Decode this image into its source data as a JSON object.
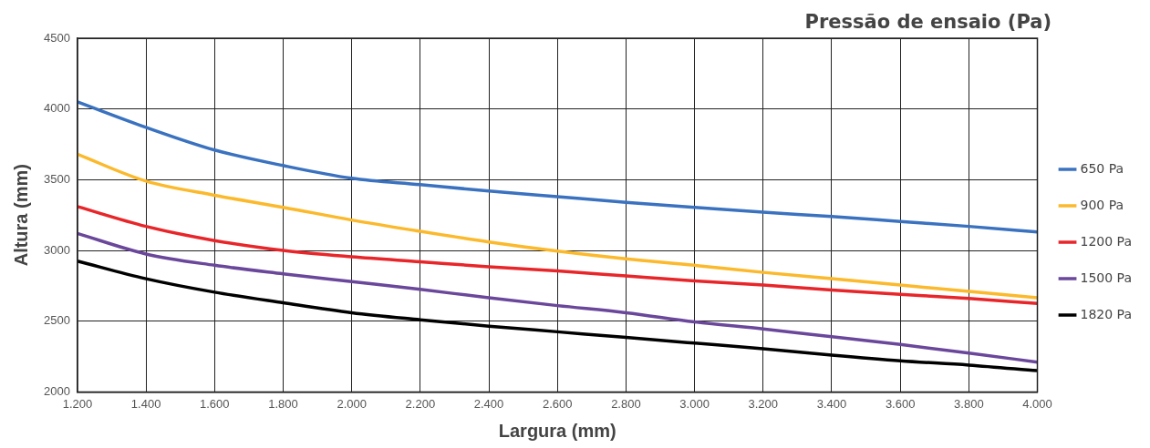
{
  "chart_data": {
    "type": "line",
    "legend_title": "Pressão de ensaio (Pa)",
    "xlabel": "Largura (mm)",
    "ylabel": "Altura (mm)",
    "xlim": [
      1200,
      4000
    ],
    "xticks": [
      {
        "value": 1200,
        "label": "1.200"
      },
      {
        "value": 1400,
        "label": "1.400"
      },
      {
        "value": 1600,
        "label": "1.600"
      },
      {
        "value": 1800,
        "label": "1.800"
      },
      {
        "value": 2000,
        "label": "2.000"
      },
      {
        "value": 2200,
        "label": "2.200"
      },
      {
        "value": 2400,
        "label": "2.400"
      },
      {
        "value": 2600,
        "label": "2.600"
      },
      {
        "value": 2800,
        "label": "2.800"
      },
      {
        "value": 3000,
        "label": "3.000"
      },
      {
        "value": 3200,
        "label": "3.200"
      },
      {
        "value": 3400,
        "label": "3.400"
      },
      {
        "value": 3600,
        "label": "3.600"
      },
      {
        "value": 3800,
        "label": "3.800"
      },
      {
        "value": 4000,
        "label": "4.000"
      }
    ],
    "ylim": [
      2000,
      4500
    ],
    "yticks": [
      2000,
      2500,
      3000,
      3500,
      4000,
      4500
    ],
    "x": [
      1200,
      1400,
      1600,
      1800,
      2000,
      2200,
      2400,
      2600,
      2800,
      3000,
      3200,
      3400,
      3600,
      3800,
      4000
    ],
    "grid": true,
    "legend": "right",
    "marker": "none",
    "line_style": "solid",
    "series": [
      {
        "name": "650 Pa",
        "color": "#3a72c0",
        "values": [
          4050,
          3870,
          3710,
          3600,
          3510,
          3465,
          3420,
          3380,
          3340,
          3305,
          3270,
          3240,
          3205,
          3170,
          3130
        ]
      },
      {
        "name": "900 Pa",
        "color": "#fbb92b",
        "values": [
          3680,
          3490,
          3390,
          3305,
          3215,
          3135,
          3060,
          2995,
          2940,
          2895,
          2845,
          2800,
          2755,
          2710,
          2665
        ]
      },
      {
        "name": "1200 Pa",
        "color": "#e8262a",
        "values": [
          3310,
          3170,
          3070,
          3000,
          2955,
          2920,
          2885,
          2855,
          2820,
          2785,
          2755,
          2720,
          2690,
          2660,
          2625
        ]
      },
      {
        "name": "1500 Pa",
        "color": "#6a479b",
        "values": [
          3120,
          2975,
          2895,
          2835,
          2780,
          2725,
          2665,
          2610,
          2560,
          2495,
          2445,
          2390,
          2335,
          2275,
          2210
        ]
      },
      {
        "name": "1820 Pa",
        "color": "#000000",
        "values": [
          2925,
          2800,
          2705,
          2630,
          2560,
          2510,
          2465,
          2425,
          2385,
          2345,
          2305,
          2260,
          2220,
          2190,
          2150
        ]
      }
    ]
  }
}
